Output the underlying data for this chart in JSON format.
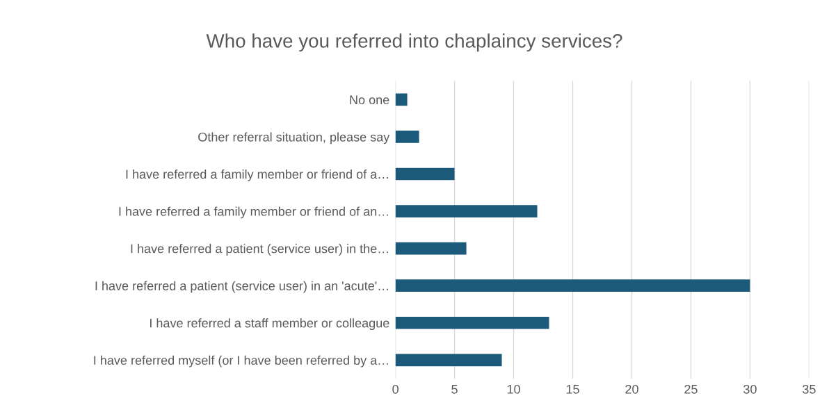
{
  "chart_data": {
    "type": "bar",
    "orientation": "horizontal",
    "title": "Who have you referred into chaplaincy services?",
    "categories": [
      "No one",
      "Other referral situation, please say",
      "I have referred a family member or friend of a…",
      "I have referred a family member or friend of an…",
      "I have referred a patient (service user) in the…",
      "I have referred a patient (service user) in an 'acute'…",
      "I have referred a staff member or colleague",
      "I have referred myself (or I have been referred by a…"
    ],
    "values": [
      1,
      2,
      5,
      12,
      6,
      30,
      13,
      9
    ],
    "color": "#1b5a7a",
    "xlim": [
      0,
      35
    ],
    "xticks": [
      0,
      5,
      10,
      15,
      20,
      25,
      30,
      35
    ],
    "grid": "x"
  }
}
